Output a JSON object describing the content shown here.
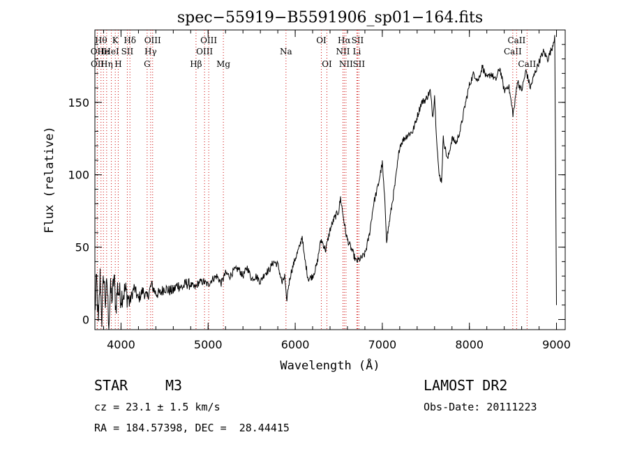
{
  "chart_data": {
    "type": "line",
    "title": "spec−55919−B5591906_sp01−164.fits",
    "xlabel": "Wavelength (Å)",
    "ylabel": "Flux (relative)",
    "xlim": [
      3700,
      9100
    ],
    "ylim": [
      -7,
      200
    ],
    "x_ticks": [
      4000,
      5000,
      6000,
      7000,
      8000,
      9000
    ],
    "y_ticks": [
      0,
      50,
      100,
      150
    ],
    "grid": false,
    "line_color": "#000000",
    "marker_color": "#cc0000",
    "series": [
      {
        "x": [
          3700,
          3720,
          3740,
          3760,
          3780,
          3800,
          3820,
          3840,
          3860,
          3880,
          3900,
          3920,
          3940,
          3960,
          3980,
          4000,
          4050,
          4100,
          4150,
          4200,
          4250,
          4300,
          4350,
          4400,
          4450,
          4500,
          4550,
          4600,
          4650,
          4700,
          4750,
          4800,
          4850,
          4900,
          4950,
          5000,
          5050,
          5100,
          5150,
          5200,
          5250,
          5300,
          5350,
          5400,
          5450,
          5500,
          5550,
          5600,
          5650,
          5700,
          5750,
          5800,
          5850,
          5880,
          5900,
          5920,
          5950,
          6000,
          6050,
          6080,
          6100,
          6150,
          6200,
          6250,
          6280,
          6300,
          6350,
          6400,
          6450,
          6500,
          6520,
          6550,
          6580,
          6600,
          6650,
          6700,
          6750,
          6800,
          6850,
          6900,
          6950,
          7000,
          7030,
          7050,
          7100,
          7150,
          7200,
          7250,
          7300,
          7350,
          7400,
          7450,
          7500,
          7550,
          7580,
          7600,
          7620,
          7650,
          7680,
          7700,
          7750,
          7800,
          7850,
          7900,
          7950,
          8000,
          8050,
          8100,
          8150,
          8200,
          8250,
          8300,
          8350,
          8400,
          8450,
          8500,
          8520,
          8550,
          8600,
          8650,
          8700,
          8750,
          8800,
          8850,
          8900,
          8950,
          8980,
          9000
        ],
        "y": [
          5,
          28,
          -5,
          30,
          0,
          32,
          12,
          25,
          -3,
          20,
          15,
          30,
          8,
          22,
          18,
          16,
          20,
          12,
          22,
          14,
          20,
          15,
          24,
          18,
          18,
          22,
          20,
          20,
          24,
          22,
          25,
          24,
          22,
          26,
          26,
          24,
          28,
          30,
          25,
          32,
          30,
          34,
          35,
          30,
          36,
          28,
          30,
          26,
          32,
          34,
          40,
          38,
          25,
          30,
          12,
          22,
          32,
          42,
          50,
          58,
          45,
          28,
          30,
          38,
          50,
          55,
          48,
          62,
          70,
          75,
          84,
          72,
          60,
          55,
          48,
          40,
          42,
          45,
          58,
          80,
          92,
          108,
          80,
          55,
          75,
          95,
          120,
          125,
          128,
          130,
          140,
          150,
          152,
          158,
          140,
          155,
          130,
          100,
          96,
          125,
          110,
          125,
          122,
          132,
          148,
          162,
          170,
          165,
          175,
          166,
          170,
          165,
          174,
          158,
          162,
          142,
          148,
          165,
          158,
          172,
          160,
          170,
          178,
          185,
          180,
          188,
          196,
          10
        ],
        "raw_x": [
          3700,
          3720,
          3740,
          3760,
          3780,
          3800,
          3820,
          3840,
          3860,
          3880,
          3900,
          3920,
          3940,
          3960,
          3980,
          4000,
          4050,
          4100,
          4150,
          4200,
          4250,
          4300,
          4350,
          4400,
          4450,
          4500,
          4550,
          4600,
          4650,
          4700,
          4750,
          4800,
          4850,
          4900,
          4950,
          5000,
          5050,
          5100,
          5150,
          5200,
          5250,
          5300,
          5350,
          5400,
          5450,
          5500,
          5550,
          5600,
          5650,
          5700,
          5750,
          5800,
          5850,
          5880,
          5900,
          5920,
          5950,
          6000,
          6050,
          6080,
          6100,
          6150,
          6200,
          6250,
          6280,
          6300,
          6350,
          6400,
          6450,
          6500,
          6520,
          6550,
          6580,
          6600,
          6650,
          6700,
          6750,
          6800,
          6850,
          6900,
          6950,
          7000,
          7030,
          7050,
          7100,
          7150,
          7200,
          7250,
          7300,
          7350,
          7400,
          7450,
          7500,
          7550,
          7580,
          7600,
          7620,
          7650,
          7680,
          7700,
          7750,
          7800,
          7850,
          7900,
          7950,
          8000,
          8050,
          8100,
          8150,
          8200,
          8250,
          8300,
          8350,
          8400,
          8450,
          8500,
          8520,
          8550,
          8600,
          8650,
          8700,
          8750,
          8800,
          8850,
          8900,
          8950,
          8980,
          9000
        ]
      }
    ],
    "lines": [
      {
        "x": 3727,
        "label": "OII",
        "row": 1
      },
      {
        "x": 3729,
        "label": "OII",
        "row": 2
      },
      {
        "x": 3770,
        "label": "Hθ",
        "row": 0
      },
      {
        "x": 3798,
        "label": "He",
        "row": 1
      },
      {
        "x": 3835,
        "label": "Hη",
        "row": 2
      },
      {
        "x": 3889,
        "label": "HeI",
        "row": 1
      },
      {
        "x": 3934,
        "label": "K",
        "row": 0
      },
      {
        "x": 3968,
        "label": "H",
        "row": 2
      },
      {
        "x": 4072,
        "label": "SII",
        "row": 1
      },
      {
        "x": 4102,
        "label": "Hδ",
        "row": 0
      },
      {
        "x": 4300,
        "label": "G",
        "row": 2
      },
      {
        "x": 4340,
        "label": "Hγ",
        "row": 1
      },
      {
        "x": 4363,
        "label": "OIII",
        "row": 0
      },
      {
        "x": 4861,
        "label": "Hβ",
        "row": 2
      },
      {
        "x": 4959,
        "label": "OIII",
        "row": 1
      },
      {
        "x": 5007,
        "label": "OIII",
        "row": 0
      },
      {
        "x": 5175,
        "label": "Mg",
        "row": 2
      },
      {
        "x": 5894,
        "label": "Na",
        "row": 1
      },
      {
        "x": 6300,
        "label": "OI",
        "row": 0
      },
      {
        "x": 6364,
        "label": "OI",
        "row": 2
      },
      {
        "x": 6548,
        "label": "NII",
        "row": 1
      },
      {
        "x": 6563,
        "label": "Hα",
        "row": 0
      },
      {
        "x": 6583,
        "label": "NII",
        "row": 2
      },
      {
        "x": 6708,
        "label": "Li",
        "row": 1
      },
      {
        "x": 6716,
        "label": "SII",
        "row": 0
      },
      {
        "x": 6731,
        "label": "SII",
        "row": 2
      },
      {
        "x": 8498,
        "label": "CaII",
        "row": 1
      },
      {
        "x": 8542,
        "label": "CaII",
        "row": 0
      },
      {
        "x": 8662,
        "label": "CaII",
        "row": 2
      }
    ]
  },
  "info": {
    "object_class": "STAR",
    "subclass": "M3",
    "survey": "LAMOST DR2",
    "redshift": "cz = 23.1 ± 1.5 km/s",
    "obs_date": "Obs-Date: 20111223",
    "coords": "RA = 184.57398, DEC =  28.44415"
  }
}
